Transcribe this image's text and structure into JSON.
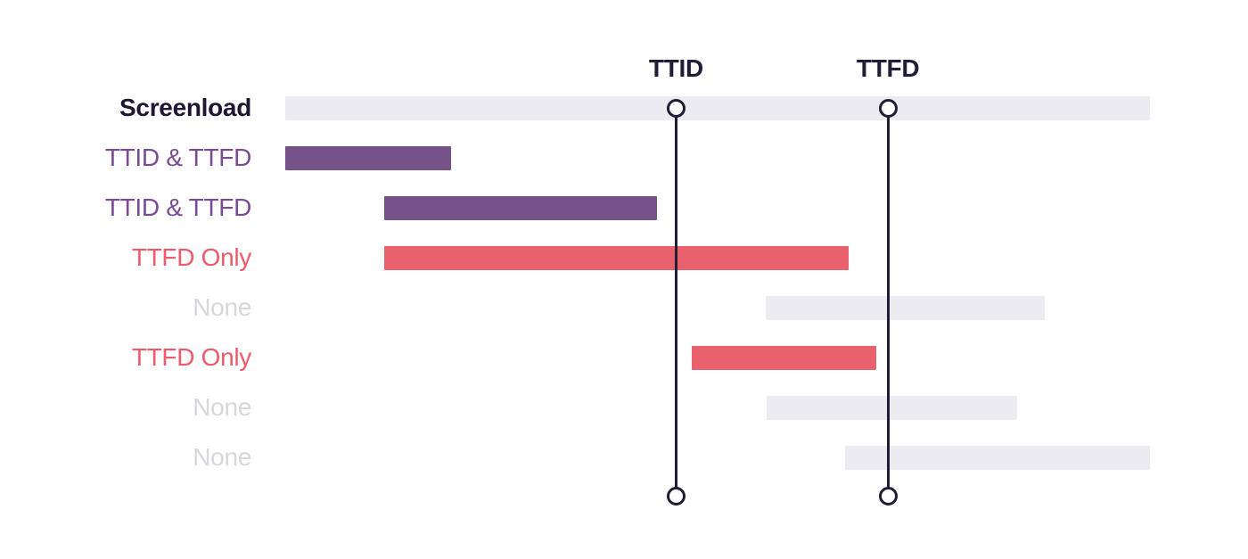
{
  "chart_data": {
    "type": "bar",
    "variant": "gantt-span-waterfall",
    "title": "",
    "xlabel": "",
    "ylabel": "",
    "axis": {
      "x_range_pct": [
        0,
        100
      ],
      "grid": false,
      "legend": "none"
    },
    "rows": [
      {
        "label": "Screenload",
        "category": "screenload",
        "start_pct": 0,
        "end_pct": 100
      },
      {
        "label": "TTID & TTFD",
        "category": "ttid_ttfd",
        "start_pct": 0,
        "end_pct": 19.2
      },
      {
        "label": "TTID & TTFD",
        "category": "ttid_ttfd",
        "start_pct": 11.4,
        "end_pct": 43.0
      },
      {
        "label": "TTFD Only",
        "category": "ttfd_only",
        "start_pct": 11.4,
        "end_pct": 65.2
      },
      {
        "label": "None",
        "category": "none",
        "start_pct": 55.6,
        "end_pct": 87.8
      },
      {
        "label": "TTFD Only",
        "category": "ttfd_only",
        "start_pct": 47.0,
        "end_pct": 68.4
      },
      {
        "label": "None",
        "category": "none",
        "start_pct": 55.7,
        "end_pct": 84.6
      },
      {
        "label": "None",
        "category": "none",
        "start_pct": 64.7,
        "end_pct": 100
      }
    ],
    "markers": [
      {
        "label": "TTID",
        "x_pct": 45.2
      },
      {
        "label": "TTFD",
        "x_pct": 69.7
      }
    ],
    "colors": {
      "background": "#FFFFFF",
      "screenload_track": "#EDEBF2",
      "ttid_ttfd": "#75518A",
      "ttfd_only": "#EA616E",
      "none": "#EDEBF2",
      "marker_line": "#221C35",
      "marker_label": "#221C35",
      "label_screenload": "#1F1633",
      "label_ttid_ttfd": "#7A4B94",
      "label_ttfd_only": "#ED5A69",
      "label_none": "#D8D5DE"
    }
  }
}
